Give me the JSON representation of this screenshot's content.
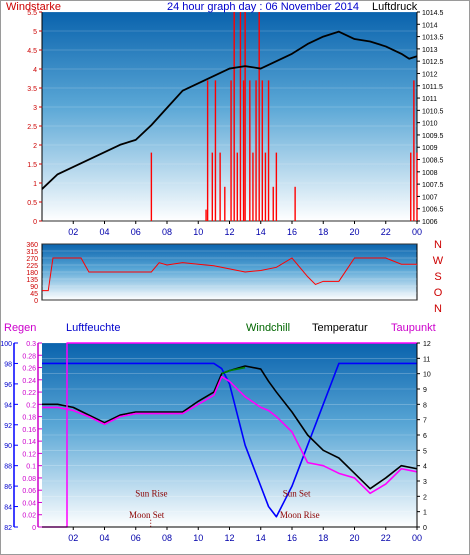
{
  "chart_data": [
    {
      "type": "line",
      "panel": "wind-pressure",
      "title": "24 hour graph day : 06 November 2014",
      "left_label": "Windstarke",
      "right_label": "Luftdruck",
      "x_ticks": [
        "02",
        "04",
        "06",
        "08",
        "10",
        "12",
        "14",
        "16",
        "18",
        "20",
        "22",
        "00"
      ],
      "x_range": [
        0,
        24
      ],
      "left_range": [
        0,
        5.5
      ],
      "left_ticks": [
        "0",
        "0.5",
        "1",
        "1.5",
        "2",
        "2.5",
        "3",
        "3.5",
        "4",
        "4.5",
        "5",
        "5.5"
      ],
      "right_range": [
        1006,
        1014.5
      ],
      "right_ticks": [
        "1006",
        "1006.5",
        "1007",
        "1007.5",
        "1008",
        "1008.5",
        "1009",
        "1009.5",
        "1010",
        "1010.5",
        "1011",
        "1011.5",
        "1012",
        "1012.5",
        "1013",
        "1013.5",
        "1014",
        "1014.5"
      ],
      "series": [
        {
          "axis": "right",
          "color": "#000000",
          "x": [
            0,
            1,
            2,
            3,
            4,
            5,
            6,
            7,
            8,
            9,
            10,
            11,
            12,
            13,
            14,
            15,
            16,
            17,
            18,
            19,
            20,
            21,
            22,
            23,
            23.5,
            24
          ],
          "values": [
            1007.3,
            1007.9,
            1008.2,
            1008.5,
            1008.8,
            1009.1,
            1009.3,
            1009.9,
            1010.6,
            1011.3,
            1011.6,
            1011.9,
            1012.2,
            1012.3,
            1012.2,
            1012.5,
            1012.8,
            1013.2,
            1013.5,
            1013.7,
            1013.4,
            1013.3,
            1013.1,
            1012.8,
            1012.6,
            1012.7
          ]
        }
      ],
      "wind_spikes": [
        {
          "x": 7.0,
          "v": 1.8
        },
        {
          "x": 10.5,
          "v": 0.3
        },
        {
          "x": 10.6,
          "v": 3.7
        },
        {
          "x": 10.9,
          "v": 1.8
        },
        {
          "x": 11.1,
          "v": 3.7
        },
        {
          "x": 11.4,
          "v": 1.8
        },
        {
          "x": 11.7,
          "v": 0.9
        },
        {
          "x": 12.1,
          "v": 3.7
        },
        {
          "x": 12.3,
          "v": 5.5
        },
        {
          "x": 12.5,
          "v": 1.8
        },
        {
          "x": 12.7,
          "v": 5.5
        },
        {
          "x": 12.9,
          "v": 3.7
        },
        {
          "x": 13.0,
          "v": 5.5
        },
        {
          "x": 13.3,
          "v": 3.7
        },
        {
          "x": 13.5,
          "v": 1.8
        },
        {
          "x": 13.7,
          "v": 3.7
        },
        {
          "x": 13.9,
          "v": 5.5
        },
        {
          "x": 14.1,
          "v": 3.7
        },
        {
          "x": 14.3,
          "v": 1.8
        },
        {
          "x": 14.5,
          "v": 3.7
        },
        {
          "x": 14.8,
          "v": 0.9
        },
        {
          "x": 15.0,
          "v": 1.8
        },
        {
          "x": 16.2,
          "v": 0.9
        },
        {
          "x": 23.6,
          "v": 1.8
        },
        {
          "x": 23.8,
          "v": 3.7
        },
        {
          "x": 24.0,
          "v": 1.8
        }
      ]
    },
    {
      "type": "line",
      "panel": "wind-direction",
      "x_range": [
        0,
        24
      ],
      "y_range": [
        0,
        360
      ],
      "y_ticks": [
        "0",
        "45",
        "90",
        "135",
        "180",
        "225",
        "270",
        "315",
        "360"
      ],
      "compass_labels": [
        "N",
        "W",
        "S",
        "O",
        "N"
      ],
      "series": [
        {
          "color": "#ff0000",
          "x": [
            0,
            0.4,
            0.7,
            1.5,
            2.5,
            3,
            4,
            5,
            6,
            7,
            7.5,
            8,
            9,
            10,
            11,
            12,
            13,
            14,
            15,
            16,
            17,
            17.5,
            18,
            19,
            20,
            21,
            22,
            23,
            24
          ],
          "values": [
            60,
            60,
            270,
            270,
            270,
            180,
            180,
            180,
            180,
            180,
            240,
            225,
            240,
            230,
            220,
            200,
            180,
            190,
            210,
            270,
            150,
            100,
            120,
            120,
            270,
            270,
            270,
            230,
            230
          ]
        }
      ]
    },
    {
      "type": "line",
      "panel": "humidity-temperature",
      "left_label_1": "Regen",
      "left_label_2": "Luftfeuchte",
      "center_labels": [
        "Windchill",
        "Temperatur"
      ],
      "right_label": "Taupunkt",
      "humidity_range": [
        82,
        100
      ],
      "humidity_ticks": [
        "82",
        "84",
        "86",
        "88",
        "90",
        "92",
        "94",
        "96",
        "98",
        "100"
      ],
      "rain_range": [
        0,
        0.3
      ],
      "rain_ticks": [
        "0",
        "0.02",
        "0.04",
        "0.06",
        "0.08",
        "0.1",
        "0.12",
        "0.14",
        "0.16",
        "0.18",
        "0.2",
        "0.22",
        "0.24",
        "0.26",
        "0.28",
        "0.3"
      ],
      "temp_range": [
        0,
        12
      ],
      "temp_ticks": [
        "0",
        "1",
        "2",
        "3",
        "4",
        "5",
        "6",
        "7",
        "8",
        "9",
        "10",
        "11",
        "12"
      ],
      "x_range": [
        0,
        24
      ],
      "annotations": [
        {
          "text": "Sun Rise",
          "x": 7.0,
          "temp": 2.0
        },
        {
          "text": "Moon Set",
          "x": 6.7,
          "temp": 0.6
        },
        {
          "text": "Sun Set",
          "x": 16.3,
          "temp": 2.0
        },
        {
          "text": "Moon Rise",
          "x": 16.5,
          "temp": 0.6
        }
      ],
      "series": [
        {
          "name": "Luftfeuchte",
          "color": "#0000ff",
          "axis": "humidity",
          "x": [
            0,
            11,
            11.5,
            12,
            12.5,
            13,
            13.5,
            14,
            14.5,
            15,
            15.5,
            16,
            16.5,
            17,
            17.5,
            18,
            18.5,
            19,
            24
          ],
          "values": [
            98,
            98,
            97.5,
            96,
            93,
            90,
            88,
            86,
            84,
            83,
            84.5,
            86,
            88,
            90,
            92,
            94,
            96,
            98,
            98
          ]
        },
        {
          "name": "Temperatur",
          "color": "#000000",
          "axis": "temp",
          "x": [
            0,
            1,
            2,
            3,
            4,
            5,
            6,
            7,
            8,
            9,
            10,
            11,
            11.5,
            12,
            13,
            14,
            14.5,
            15,
            16,
            17,
            18,
            19,
            20,
            21,
            22,
            23,
            24
          ],
          "values": [
            8,
            8,
            7.8,
            7.3,
            6.8,
            7.3,
            7.5,
            7.5,
            7.5,
            7.5,
            8.2,
            8.8,
            10,
            10.2,
            10.5,
            10.3,
            9.5,
            8.8,
            7.5,
            6.0,
            5.0,
            4.5,
            3.5,
            2.5,
            3.2,
            4.0,
            3.8
          ]
        },
        {
          "name": "Taupunkt",
          "color": "#ff00ff",
          "axis": "temp",
          "x": [
            0,
            1,
            2,
            3,
            4,
            5,
            6,
            7,
            8,
            9,
            10,
            11,
            11.5,
            12,
            13,
            14,
            14.5,
            15,
            16,
            17,
            18,
            19,
            20,
            21,
            22,
            23,
            24
          ],
          "values": [
            7.8,
            7.8,
            7.6,
            7.2,
            6.7,
            7.2,
            7.4,
            7.4,
            7.4,
            7.4,
            8.0,
            8.6,
            9.8,
            9.5,
            8.5,
            7.8,
            7.6,
            7.2,
            6.2,
            4.2,
            4.0,
            3.5,
            3.2,
            2.2,
            2.8,
            3.8,
            3.6
          ]
        },
        {
          "name": "Windchill",
          "color": "#008000",
          "axis": "temp",
          "x": [
            11.5,
            12,
            12.5,
            13
          ],
          "values": [
            10.0,
            10.2,
            10.3,
            10.4
          ]
        },
        {
          "name": "Regen",
          "color": "#ff00ff",
          "axis": "rain",
          "x": [
            0,
            1.6,
            1.6,
            24
          ],
          "values": [
            0,
            0,
            0.3,
            0.3
          ]
        }
      ]
    }
  ]
}
